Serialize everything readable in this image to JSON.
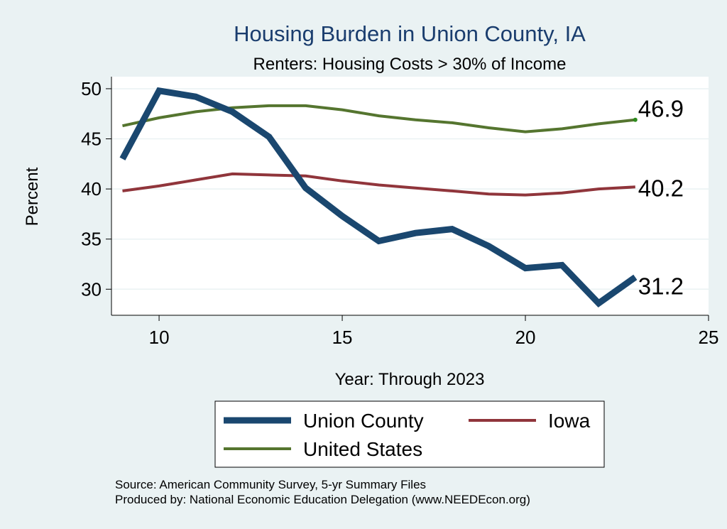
{
  "chart_data": {
    "type": "line",
    "title": "Housing Burden in Union County, IA",
    "subtitle": "Renters: Housing Costs > 30% of Income",
    "xlabel": "Year: Through 2023",
    "ylabel": "Percent",
    "xlim": [
      8.7,
      25.0
    ],
    "ylim": [
      27.4,
      51.2
    ],
    "xticks": [
      10,
      15,
      20,
      25
    ],
    "yticks": [
      30,
      35,
      40,
      45,
      50
    ],
    "grid": true,
    "series": [
      {
        "name": "Union County",
        "color": "#1a476f",
        "width": 9,
        "x": [
          9,
          10,
          11,
          12,
          13,
          14,
          15,
          16,
          17,
          18,
          19,
          20,
          21,
          22,
          23
        ],
        "values": [
          43.0,
          49.8,
          49.2,
          47.7,
          45.2,
          40.1,
          37.3,
          34.8,
          35.6,
          36.0,
          34.3,
          32.1,
          32.4,
          28.6,
          31.2
        ],
        "end_label": "31.2"
      },
      {
        "name": "Iowa",
        "color": "#90353b",
        "width": 4,
        "x": [
          9,
          10,
          11,
          12,
          13,
          14,
          15,
          16,
          17,
          18,
          19,
          20,
          21,
          22,
          23
        ],
        "values": [
          39.8,
          40.3,
          40.9,
          41.5,
          41.4,
          41.3,
          40.8,
          40.4,
          40.1,
          39.8,
          39.5,
          39.4,
          39.6,
          40.0,
          40.2
        ],
        "end_label": "40.2"
      },
      {
        "name": "United States",
        "color": "#55752f",
        "width": 4,
        "x": [
          9,
          10,
          11,
          12,
          13,
          14,
          15,
          16,
          17,
          18,
          19,
          20,
          21,
          22,
          23
        ],
        "values": [
          46.3,
          47.1,
          47.7,
          48.1,
          48.3,
          48.3,
          47.9,
          47.3,
          46.9,
          46.6,
          46.1,
          45.7,
          46.0,
          46.5,
          46.9
        ],
        "end_label": "46.9"
      }
    ],
    "legend_position": "bottom",
    "notes": [
      "Source: American Community Survey, 5-yr Summary Files",
      "Produced by: National Economic Education Delegation (www.NEEDEcon.org)"
    ]
  }
}
